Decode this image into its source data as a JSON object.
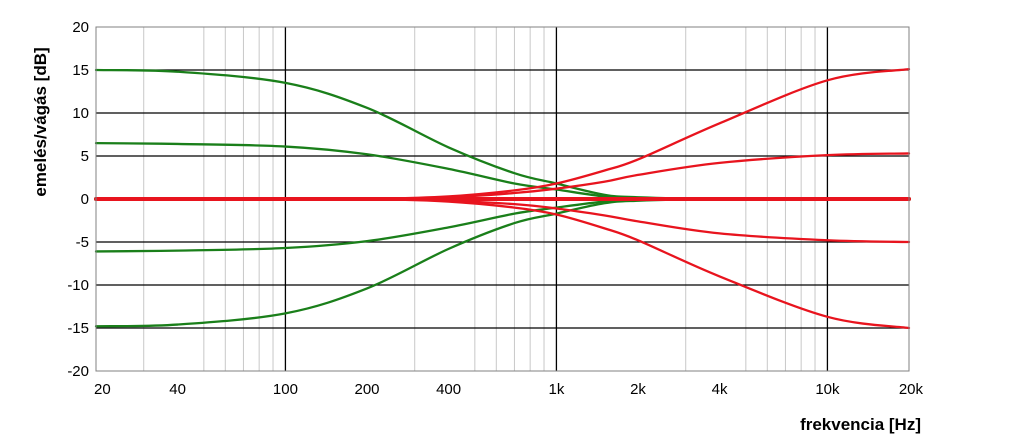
{
  "chart_data": {
    "type": "line",
    "title": "",
    "xlabel": "frekvencia [Hz]",
    "ylabel": "emelés/vágás [dB]",
    "x_scale": "log",
    "xlim": [
      20,
      20000
    ],
    "ylim": [
      -20,
      20
    ],
    "x_ticks": [
      {
        "value": 20,
        "label": "20"
      },
      {
        "value": 40,
        "label": "40"
      },
      {
        "value": 100,
        "label": "100"
      },
      {
        "value": 200,
        "label": "200"
      },
      {
        "value": 400,
        "label": "400"
      },
      {
        "value": 1000,
        "label": "1k"
      },
      {
        "value": 2000,
        "label": "2k"
      },
      {
        "value": 4000,
        "label": "4k"
      },
      {
        "value": 10000,
        "label": "10k"
      },
      {
        "value": 20000,
        "label": "20k"
      }
    ],
    "y_ticks": [
      {
        "value": 20,
        "label": "20"
      },
      {
        "value": 15,
        "label": "15"
      },
      {
        "value": 10,
        "label": "10"
      },
      {
        "value": 5,
        "label": "5"
      },
      {
        "value": 0,
        "label": "0"
      },
      {
        "value": -5,
        "label": "-5"
      },
      {
        "value": -10,
        "label": "-10"
      },
      {
        "value": -15,
        "label": "-15"
      },
      {
        "value": -20,
        "label": "-20"
      }
    ],
    "major_x_gridlines": [
      100,
      1000,
      10000
    ],
    "minor_x_gridlines": [
      30,
      50,
      60,
      70,
      80,
      90,
      300,
      500,
      600,
      700,
      800,
      900,
      3000,
      5000,
      6000,
      7000,
      8000,
      9000
    ],
    "grid": true,
    "legend": "none",
    "colors": {
      "bass": "#1a7f1a",
      "treble": "#e8141e",
      "grid_major": "#000000",
      "grid_minor": "#c8c8c8"
    },
    "x": [
      20,
      40,
      100,
      200,
      400,
      700,
      1000,
      1500,
      2000,
      4000,
      10000,
      20000
    ],
    "series": [
      {
        "group": "bass",
        "values": [
          15,
          14.8,
          13.5,
          10.6,
          6,
          3,
          1.8,
          0.5,
          0.2,
          0,
          0,
          0
        ]
      },
      {
        "group": "bass",
        "values": [
          6.5,
          6.4,
          6.1,
          5.2,
          3.5,
          1.8,
          1.1,
          0.3,
          0.1,
          0,
          0,
          0
        ]
      },
      {
        "group": "bass",
        "values": [
          -6.1,
          -6,
          -5.7,
          -4.9,
          -3.3,
          -1.7,
          -1.0,
          -0.3,
          -0.1,
          0,
          0,
          0
        ]
      },
      {
        "group": "bass",
        "values": [
          -14.8,
          -14.6,
          -13.3,
          -10.4,
          -5.8,
          -2.8,
          -1.7,
          -0.5,
          -0.2,
          0,
          0,
          0
        ]
      },
      {
        "group": "bass",
        "values": [
          0,
          0,
          0,
          0,
          0,
          0,
          0,
          0,
          0,
          0,
          0,
          0
        ]
      },
      {
        "group": "treble",
        "values": [
          0,
          0,
          0,
          0,
          0.3,
          1.0,
          1.8,
          3.3,
          4.6,
          8.8,
          13.8,
          15.1
        ]
      },
      {
        "group": "treble",
        "values": [
          0,
          0,
          0,
          0,
          0.2,
          0.7,
          1.2,
          2.0,
          2.8,
          4.2,
          5.1,
          5.3
        ]
      },
      {
        "group": "treble",
        "values": [
          0,
          0,
          0,
          0,
          -0.2,
          -0.6,
          -1.1,
          -1.9,
          -2.6,
          -4.0,
          -4.8,
          -5.0
        ]
      },
      {
        "group": "treble",
        "values": [
          0,
          0,
          0,
          0,
          -0.3,
          -1.0,
          -1.8,
          -3.4,
          -4.8,
          -9.0,
          -13.7,
          -15
        ]
      },
      {
        "group": "treble",
        "values": [
          0,
          0,
          0,
          0,
          0,
          0,
          0,
          0,
          0,
          0,
          0,
          0
        ]
      }
    ]
  }
}
